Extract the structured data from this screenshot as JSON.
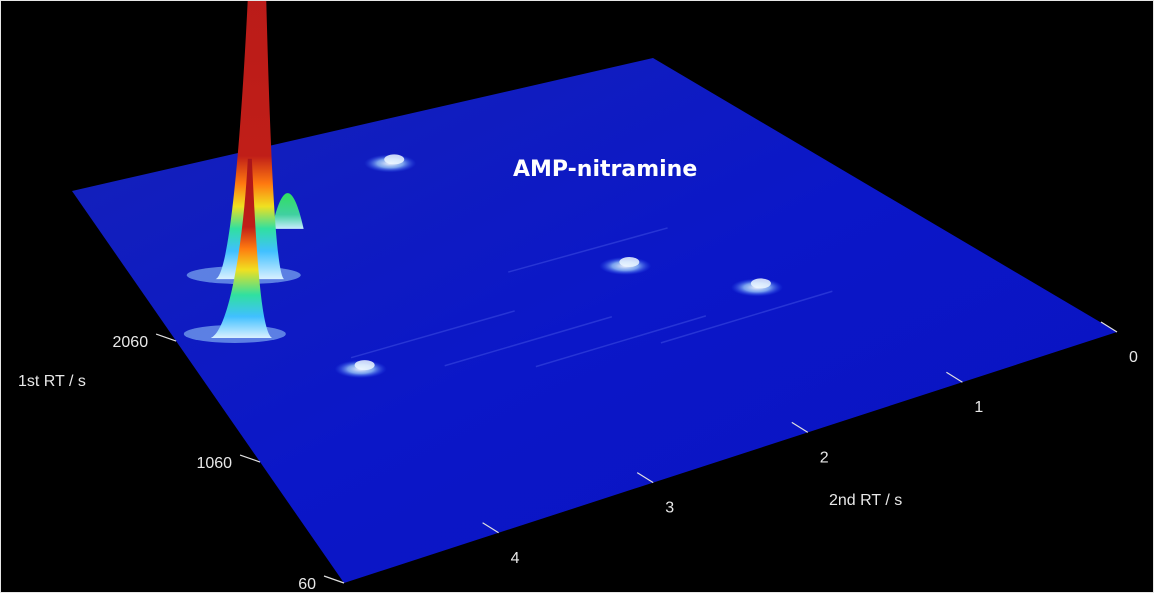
{
  "chart_data": {
    "type": "surface",
    "title": "",
    "xlabel": "2nd RT / s",
    "ylabel": "1st RT / s",
    "x_ticks": [
      0,
      1,
      2,
      3,
      4
    ],
    "y_ticks": [
      60,
      1060,
      2060
    ],
    "grid": false,
    "annotations": [
      {
        "text": "AMP-nitramine",
        "target": "tallest-peak"
      }
    ],
    "peaks": [
      {
        "name": "peak-1",
        "x": 4.2,
        "y": 2350,
        "height": 1.0
      },
      {
        "name": "peak-2",
        "x": 4.55,
        "y": 1950,
        "height": 0.32
      },
      {
        "name": "peak-3",
        "x": 3.7,
        "y": 2650,
        "height": 0.08
      },
      {
        "name": "peak-4",
        "x": 2.6,
        "y": 2950,
        "height": 0.05
      },
      {
        "name": "peak-5",
        "x": 1.9,
        "y": 1700,
        "height": 0.04
      },
      {
        "name": "peak-6",
        "x": 1.35,
        "y": 1250,
        "height": 0.03
      },
      {
        "name": "peak-7",
        "x": 4.0,
        "y": 1500,
        "height": 0.02
      }
    ],
    "colors": {
      "background": "#000000",
      "surface": "#0b14c4",
      "peak_base": "#b0e0ff",
      "peak_mid": "#f0d020",
      "peak_top": "#c0201a",
      "text": "#e8e8e8"
    }
  }
}
